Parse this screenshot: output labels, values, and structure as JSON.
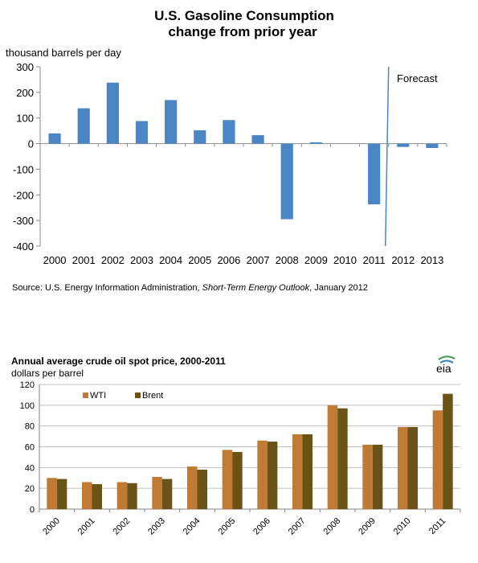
{
  "charts": {
    "top": {
      "title_line1": "U.S. Gasoline Consumption",
      "title_line2": "change from prior year",
      "unit_label": "thousand barrels per day",
      "forecast_label": "Forecast",
      "source_prefix": "Source: U.S. Energy Information Administration, ",
      "source_italic": "Short-Term Energy Outlook",
      "source_suffix": ", January 2012"
    },
    "bottom": {
      "title": "Annual average  crude  oil spot price, 2000-2011",
      "unit_label": "dollars per barrel",
      "logo_text": "eia"
    }
  },
  "colors": {
    "top_bar": "#4a86c5",
    "wti": "#c07a33",
    "brent": "#6b5317",
    "forecast_line": "#4a86c5",
    "grid": "#bfbfbf"
  },
  "chart_data": [
    {
      "type": "bar",
      "title": "U.S. Gasoline Consumption change from prior year",
      "ylabel": "thousand barrels per day",
      "categories": [
        "2000",
        "2001",
        "2002",
        "2003",
        "2004",
        "2005",
        "2006",
        "2007",
        "2008",
        "2009",
        "2010",
        "2011",
        "2012",
        "2013"
      ],
      "values": [
        40,
        138,
        238,
        88,
        170,
        52,
        92,
        33,
        -295,
        5,
        0,
        -237,
        -13,
        -17
      ],
      "ylim": [
        -400,
        300
      ],
      "yticks": [
        -400,
        -300,
        -200,
        -100,
        0,
        100,
        200,
        300
      ],
      "forecast_start_between": [
        "2011",
        "2012"
      ],
      "grid": false
    },
    {
      "type": "bar",
      "title": "Annual average  crude  oil spot price, 2000-2011",
      "ylabel": "dollars per barrel",
      "categories": [
        "2000",
        "2001",
        "2002",
        "2003",
        "2004",
        "2005",
        "2006",
        "2007",
        "2008",
        "2009",
        "2010",
        "2011"
      ],
      "series": [
        {
          "name": "WTI",
          "values": [
            30,
            26,
            26,
            31,
            41,
            57,
            66,
            72,
            100,
            62,
            79,
            95
          ]
        },
        {
          "name": "Brent",
          "values": [
            29,
            24,
            25,
            29,
            38,
            55,
            65,
            72,
            97,
            62,
            79,
            111
          ]
        }
      ],
      "ylim": [
        0,
        120
      ],
      "yticks": [
        0,
        20,
        40,
        60,
        80,
        100,
        120
      ],
      "legend": "top-left",
      "grid": true
    }
  ]
}
